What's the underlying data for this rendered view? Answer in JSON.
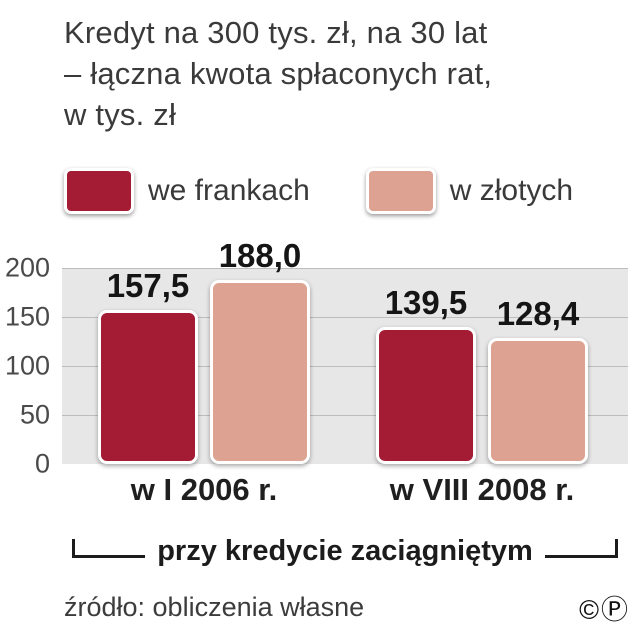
{
  "title": {
    "line1": "Kredyt na 300 tys. zł, na 30 lat",
    "line2": "– łączna kwota spłaconych rat,",
    "line3": "w tys. zł"
  },
  "legend": {
    "items": [
      {
        "label": "we frankach",
        "color": "#a41c33"
      },
      {
        "label": "w złotych",
        "color": "#dda291"
      }
    ]
  },
  "chart_data": {
    "type": "bar",
    "title": "Kredyt na 300 tys. zł, na 30 lat – łączna kwota spłaconych rat, w tys. zł",
    "categories": [
      "w I 2006 r.",
      "w VIII 2008 r."
    ],
    "series": [
      {
        "name": "we frankach",
        "color": "#a41c33",
        "values": [
          157.5,
          139.5
        ]
      },
      {
        "name": "w złotych",
        "color": "#dda291",
        "values": [
          188.0,
          128.4
        ]
      }
    ],
    "value_labels": [
      [
        "157,5",
        "188,0"
      ],
      [
        "139,5",
        "128,4"
      ]
    ],
    "ylim": [
      0,
      200
    ],
    "yticks": [
      0,
      50,
      100,
      150,
      200
    ],
    "grid": "horizontal",
    "legend_position": "top",
    "xlabel": "przy kredycie zaciągniętym",
    "ylabel": ""
  },
  "bracket": {
    "label": "przy kredycie zaciągniętym"
  },
  "footer": {
    "source": "źródło: obliczenia własne",
    "copyright": "©Ⓟ"
  }
}
